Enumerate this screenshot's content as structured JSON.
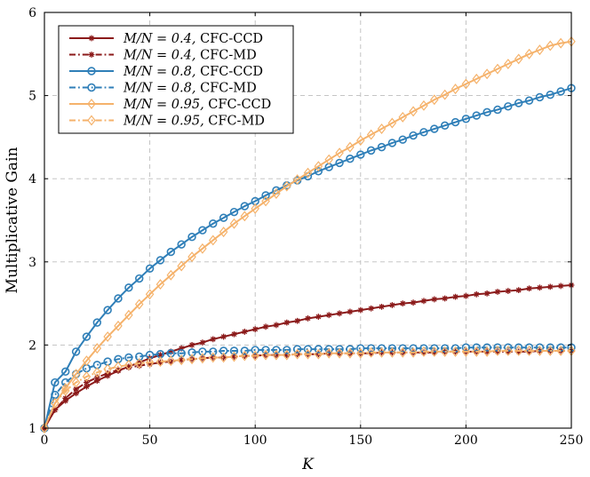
{
  "chart_data": {
    "type": "line",
    "xlabel": "K",
    "ylabel": "Multiplicative Gain",
    "xlim": [
      0,
      250
    ],
    "ylim": [
      1,
      6
    ],
    "x_ticks": [
      "0",
      "50",
      "100",
      "150",
      "200",
      "250"
    ],
    "y_ticks": [
      "1",
      "2",
      "3",
      "4",
      "5",
      "6"
    ],
    "grid": true,
    "legend_position": "top-left",
    "colors": {
      "dark_red": "#8b1a1a",
      "blue": "#2f7fb8",
      "orange": "#f5b26b"
    },
    "x": [
      0,
      5,
      10,
      15,
      20,
      25,
      30,
      35,
      40,
      45,
      50,
      55,
      60,
      65,
      70,
      75,
      80,
      85,
      90,
      95,
      100,
      105,
      110,
      115,
      120,
      125,
      130,
      135,
      140,
      145,
      150,
      155,
      160,
      165,
      170,
      175,
      180,
      185,
      190,
      195,
      200,
      205,
      210,
      215,
      220,
      225,
      230,
      235,
      240,
      245,
      250
    ],
    "series": [
      {
        "name": "M/N = 0.4, CFC-CCD",
        "legend_math": "M/N = 0.4,",
        "legend_text": "CFC-CCD",
        "color": "#8b1a1a",
        "dash": "solid",
        "marker": "star",
        "values": [
          1,
          1.22,
          1.33,
          1.42,
          1.5,
          1.57,
          1.63,
          1.69,
          1.74,
          1.79,
          1.84,
          1.88,
          1.92,
          1.96,
          2.0,
          2.03,
          2.07,
          2.1,
          2.13,
          2.16,
          2.19,
          2.22,
          2.24,
          2.27,
          2.29,
          2.32,
          2.34,
          2.36,
          2.38,
          2.4,
          2.42,
          2.44,
          2.46,
          2.48,
          2.5,
          2.51,
          2.53,
          2.55,
          2.56,
          2.58,
          2.59,
          2.61,
          2.62,
          2.64,
          2.65,
          2.66,
          2.68,
          2.69,
          2.7,
          2.71,
          2.72
        ]
      },
      {
        "name": "M/N = 0.4, CFC-MD",
        "legend_math": "M/N = 0.4,",
        "legend_text": "CFC-MD",
        "color": "#8b1a1a",
        "dash": "dashdot",
        "marker": "star",
        "values": [
          1,
          1.22,
          1.36,
          1.47,
          1.55,
          1.61,
          1.66,
          1.7,
          1.73,
          1.75,
          1.77,
          1.79,
          1.8,
          1.82,
          1.83,
          1.84,
          1.85,
          1.85,
          1.86,
          1.87,
          1.87,
          1.88,
          1.88,
          1.88,
          1.89,
          1.89,
          1.89,
          1.9,
          1.9,
          1.9,
          1.9,
          1.9,
          1.91,
          1.91,
          1.91,
          1.91,
          1.91,
          1.91,
          1.92,
          1.92,
          1.92,
          1.92,
          1.92,
          1.92,
          1.92,
          1.92,
          1.92,
          1.93,
          1.93,
          1.93,
          1.93
        ]
      },
      {
        "name": "M/N = 0.8, CFC-CCD",
        "legend_math": "M/N = 0.8,",
        "legend_text": "CFC-CCD",
        "color": "#2f7fb8",
        "dash": "solid",
        "marker": "circle",
        "values": [
          1,
          1.55,
          1.68,
          1.92,
          2.1,
          2.27,
          2.42,
          2.56,
          2.69,
          2.8,
          2.92,
          3.02,
          3.12,
          3.21,
          3.3,
          3.38,
          3.46,
          3.53,
          3.6,
          3.67,
          3.73,
          3.8,
          3.86,
          3.92,
          3.98,
          4.03,
          4.09,
          4.14,
          4.19,
          4.24,
          4.29,
          4.34,
          4.38,
          4.43,
          4.47,
          4.52,
          4.56,
          4.6,
          4.64,
          4.68,
          4.72,
          4.76,
          4.8,
          4.83,
          4.87,
          4.91,
          4.94,
          4.98,
          5.01,
          5.05,
          5.09
        ]
      },
      {
        "name": "M/N = 0.8, CFC-MD",
        "legend_math": "M/N = 0.8,",
        "legend_text": "CFC-MD",
        "color": "#2f7fb8",
        "dash": "dashdot",
        "marker": "circle",
        "values": [
          1,
          1.4,
          1.55,
          1.65,
          1.72,
          1.76,
          1.8,
          1.83,
          1.85,
          1.86,
          1.88,
          1.89,
          1.9,
          1.9,
          1.91,
          1.92,
          1.92,
          1.93,
          1.93,
          1.93,
          1.94,
          1.94,
          1.94,
          1.94,
          1.95,
          1.95,
          1.95,
          1.95,
          1.95,
          1.95,
          1.96,
          1.96,
          1.96,
          1.96,
          1.96,
          1.96,
          1.96,
          1.96,
          1.96,
          1.96,
          1.97,
          1.97,
          1.97,
          1.97,
          1.97,
          1.97,
          1.97,
          1.97,
          1.97,
          1.97,
          1.97
        ]
      },
      {
        "name": "M/N = 0.95, CFC-CCD",
        "legend_math": "M/N = 0.95,",
        "legend_text": "CFC-CCD",
        "color": "#f5b26b",
        "dash": "solid",
        "marker": "diamond",
        "values": [
          1,
          1.3,
          1.48,
          1.65,
          1.81,
          1.96,
          2.1,
          2.23,
          2.36,
          2.49,
          2.61,
          2.73,
          2.84,
          2.95,
          3.06,
          3.16,
          3.26,
          3.36,
          3.46,
          3.55,
          3.64,
          3.73,
          3.82,
          3.91,
          3.99,
          4.07,
          4.15,
          4.23,
          4.31,
          4.38,
          4.46,
          4.53,
          4.6,
          4.67,
          4.74,
          4.81,
          4.88,
          4.95,
          5.01,
          5.08,
          5.14,
          5.2,
          5.26,
          5.32,
          5.38,
          5.44,
          5.5,
          5.55,
          5.6,
          5.63,
          5.65
        ]
      },
      {
        "name": "M/N = 0.95, CFC-MD",
        "legend_math": "M/N = 0.95,",
        "legend_text": "CFC-MD",
        "color": "#f5b26b",
        "dash": "dashdot",
        "marker": "diamond",
        "values": [
          1,
          1.3,
          1.45,
          1.55,
          1.62,
          1.67,
          1.71,
          1.74,
          1.76,
          1.78,
          1.79,
          1.8,
          1.81,
          1.82,
          1.83,
          1.84,
          1.85,
          1.85,
          1.86,
          1.87,
          1.87,
          1.88,
          1.88,
          1.88,
          1.89,
          1.89,
          1.89,
          1.9,
          1.9,
          1.9,
          1.9,
          1.91,
          1.91,
          1.91,
          1.91,
          1.91,
          1.92,
          1.92,
          1.92,
          1.92,
          1.92,
          1.92,
          1.92,
          1.93,
          1.93,
          1.93,
          1.93,
          1.93,
          1.93,
          1.93,
          1.93
        ]
      }
    ]
  }
}
